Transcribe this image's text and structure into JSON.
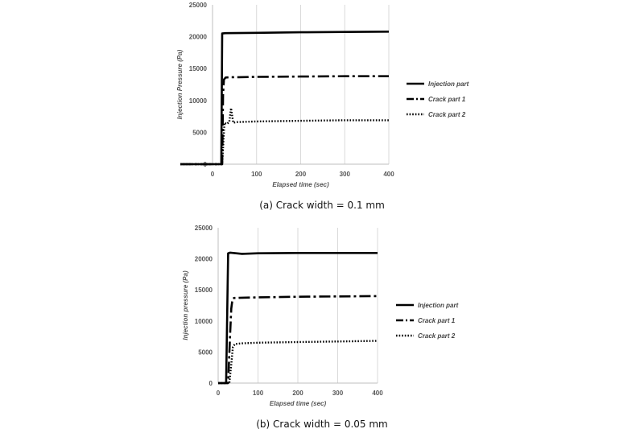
{
  "chart_data": [
    {
      "type": "line",
      "caption": "(a) Crack width = 0.1 mm",
      "xlabel": "Elapsed time (sec)",
      "ylabel": "Injection Pressure (Pa)",
      "xlim": [
        0,
        400
      ],
      "ylim": [
        0,
        25000
      ],
      "xticks": [
        0,
        100,
        200,
        300,
        400
      ],
      "yticks": [
        0,
        5000,
        10000,
        15000,
        20000,
        25000
      ],
      "grid": "vertical",
      "legend": "right",
      "series": [
        {
          "name": "Injection part",
          "style": "solid",
          "x": [
            -75,
            20,
            22,
            30,
            100,
            200,
            300,
            400
          ],
          "y": [
            0,
            0,
            20500,
            20550,
            20600,
            20700,
            20750,
            20800
          ]
        },
        {
          "name": "Crack part 1",
          "style": "dashdot",
          "x": [
            -75,
            22,
            24,
            26,
            30,
            40,
            60,
            100,
            200,
            300,
            400
          ],
          "y": [
            0,
            0,
            11000,
            13300,
            13600,
            13650,
            13650,
            13700,
            13750,
            13800,
            13800
          ]
        },
        {
          "name": "Crack part 2",
          "style": "dotted",
          "x": [
            -75,
            22,
            27,
            32,
            38,
            42,
            47,
            55,
            100,
            200,
            300,
            400
          ],
          "y": [
            0,
            0,
            6500,
            6300,
            6600,
            8800,
            6500,
            6600,
            6700,
            6800,
            6900,
            6900
          ]
        }
      ]
    },
    {
      "type": "line",
      "caption": "(b) Crack width = 0.05 mm",
      "xlabel": "Elapsed time (sec)",
      "ylabel": "Injection pressure (Pa)",
      "xlim": [
        0,
        400
      ],
      "ylim": [
        0,
        25000
      ],
      "xticks": [
        0,
        100,
        200,
        300,
        400
      ],
      "yticks": [
        0,
        5000,
        10000,
        15000,
        20000,
        25000
      ],
      "grid": "vertical",
      "legend": "right",
      "series": [
        {
          "name": "Injection part",
          "style": "solid",
          "x": [
            0,
            20,
            25,
            30,
            60,
            100,
            200,
            300,
            400
          ],
          "y": [
            0,
            0,
            20900,
            21000,
            20800,
            20900,
            20950,
            20950,
            20950
          ]
        },
        {
          "name": "Crack part 1",
          "style": "dashdot",
          "x": [
            0,
            25,
            30,
            33,
            36,
            40,
            60,
            100,
            200,
            300,
            400
          ],
          "y": [
            0,
            0,
            8000,
            12000,
            13500,
            13700,
            13750,
            13800,
            13900,
            13950,
            14000
          ]
        },
        {
          "name": "Crack part 2",
          "style": "dotted",
          "x": [
            0,
            28,
            33,
            37,
            42,
            60,
            100,
            200,
            300,
            400
          ],
          "y": [
            0,
            0,
            3000,
            5800,
            6300,
            6400,
            6500,
            6600,
            6700,
            6800
          ]
        }
      ]
    }
  ]
}
